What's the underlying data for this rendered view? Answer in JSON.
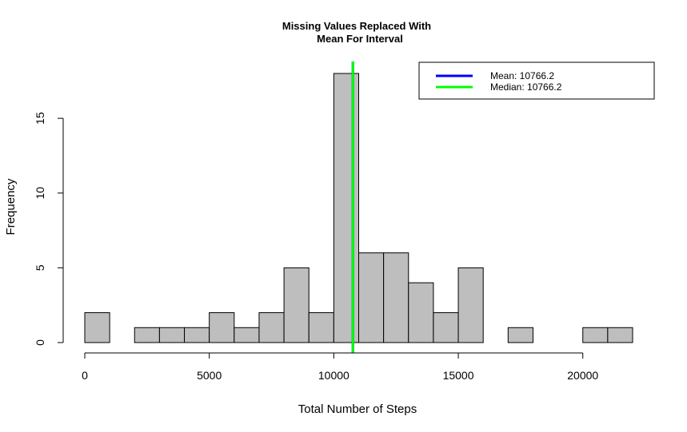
{
  "chart_data": {
    "type": "bar",
    "title": "Missing Values Replaced With\nMean For Interval",
    "xlabel": "Total Number of Steps",
    "ylabel": "Frequency",
    "bin_width": 1000,
    "bins": [
      {
        "x0": 0,
        "x1": 1000,
        "count": 2
      },
      {
        "x0": 1000,
        "x1": 2000,
        "count": 0
      },
      {
        "x0": 2000,
        "x1": 3000,
        "count": 1
      },
      {
        "x0": 3000,
        "x1": 4000,
        "count": 1
      },
      {
        "x0": 4000,
        "x1": 5000,
        "count": 1
      },
      {
        "x0": 5000,
        "x1": 6000,
        "count": 2
      },
      {
        "x0": 6000,
        "x1": 7000,
        "count": 1
      },
      {
        "x0": 7000,
        "x1": 8000,
        "count": 2
      },
      {
        "x0": 8000,
        "x1": 9000,
        "count": 5
      },
      {
        "x0": 9000,
        "x1": 10000,
        "count": 2
      },
      {
        "x0": 10000,
        "x1": 11000,
        "count": 18
      },
      {
        "x0": 11000,
        "x1": 12000,
        "count": 6
      },
      {
        "x0": 12000,
        "x1": 13000,
        "count": 6
      },
      {
        "x0": 13000,
        "x1": 14000,
        "count": 4
      },
      {
        "x0": 14000,
        "x1": 15000,
        "count": 2
      },
      {
        "x0": 15000,
        "x1": 16000,
        "count": 5
      },
      {
        "x0": 16000,
        "x1": 17000,
        "count": 0
      },
      {
        "x0": 17000,
        "x1": 18000,
        "count": 1
      },
      {
        "x0": 18000,
        "x1": 19000,
        "count": 0
      },
      {
        "x0": 19000,
        "x1": 20000,
        "count": 0
      },
      {
        "x0": 20000,
        "x1": 21000,
        "count": 1
      },
      {
        "x0": 21000,
        "x1": 22000,
        "count": 1
      }
    ],
    "xlim": [
      0,
      22000
    ],
    "ylim": [
      0,
      18
    ],
    "xticks": [
      0,
      5000,
      10000,
      15000,
      20000
    ],
    "yticks": [
      0,
      5,
      10,
      15
    ],
    "xtick_labels": [
      "0",
      "5000",
      "10000",
      "15000",
      "20000"
    ],
    "ytick_labels": [
      "0",
      "5",
      "10",
      "15"
    ],
    "bar_color": "#bebebe",
    "grid": false,
    "vlines": [
      {
        "name": "Mean",
        "value": 10766.2,
        "color": "#0000ff"
      },
      {
        "name": "Median",
        "value": 10766.2,
        "color": "#00ff00"
      }
    ],
    "legend": {
      "placement": "top-right",
      "entries": [
        {
          "label": "Mean:  10766.2",
          "color": "#0000ff"
        },
        {
          "label": "Median:  10766.2",
          "color": "#00ff00"
        }
      ]
    }
  }
}
